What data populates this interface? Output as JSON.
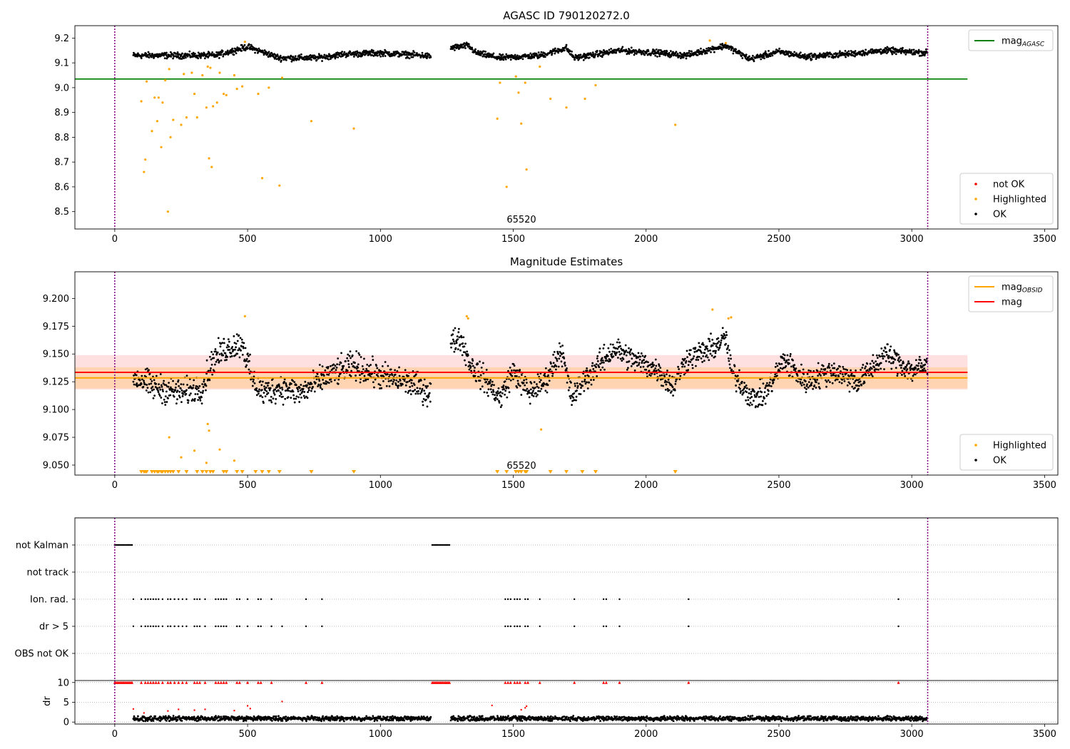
{
  "chart_data": [
    {
      "type": "scatter",
      "title": "AGASC ID 790120272.0",
      "annotation": "65520",
      "xlim": [
        -150,
        3550
      ],
      "ylim": [
        8.43,
        9.25
      ],
      "xticks": [
        0,
        500,
        1000,
        1500,
        2000,
        2500,
        3000,
        3500
      ],
      "yticks": [
        8.5,
        8.6,
        8.7,
        8.8,
        8.9,
        9.0,
        9.1,
        9.2
      ],
      "ytick_decimals": 1,
      "grid": false,
      "colors": {
        "ok": "#000000",
        "highlighted": "#ffa500",
        "not_ok": "#ff0000",
        "mag_agasc": "#008000",
        "vline": "#800080"
      },
      "vlines": [
        0,
        3060
      ],
      "lines": [
        {
          "name": "mag_AGASC",
          "y": 9.035,
          "x": [
            -150,
            3210
          ],
          "color": "#008000"
        }
      ],
      "legends": [
        {
          "placement": "top-right",
          "entries": [
            {
              "label": "mag",
              "sub": "AGASC",
              "kind": "line",
              "color": "#008000"
            }
          ]
        },
        {
          "placement": "bottom-right",
          "entries": [
            {
              "label": "not OK",
              "kind": "dot",
              "color": "#ff0000"
            },
            {
              "label": "Highlighted",
              "kind": "dot",
              "color": "#ffa500"
            },
            {
              "label": "OK",
              "kind": "dot",
              "color": "#000000"
            }
          ]
        }
      ],
      "ok_segments": [
        {
          "x": [
            70,
            380,
            500,
            620,
            760,
            860,
            1000,
            1160,
            1190
          ],
          "y": [
            9.13,
            9.13,
            9.165,
            9.12,
            9.12,
            9.135,
            9.14,
            9.13,
            9.125
          ],
          "spread": 0.012
        },
        {
          "x": [
            1265,
            1330,
            1360,
            1450,
            1600,
            1700,
            1730,
            1900,
            2050,
            2150,
            2300,
            2390,
            2500,
            2600,
            2750,
            2900,
            3060
          ],
          "y": [
            9.16,
            9.17,
            9.14,
            9.12,
            9.13,
            9.16,
            9.12,
            9.15,
            9.14,
            9.13,
            9.17,
            9.115,
            9.145,
            9.125,
            9.135,
            9.15,
            9.14
          ],
          "spread": 0.012
        }
      ],
      "highlighted": {
        "x": [
          100,
          110,
          115,
          120,
          140,
          150,
          160,
          165,
          175,
          180,
          190,
          200,
          205,
          210,
          220,
          250,
          260,
          270,
          290,
          300,
          310,
          330,
          345,
          350,
          355,
          360,
          365,
          370,
          385,
          395,
          410,
          420,
          450,
          460,
          480,
          490,
          540,
          555,
          580,
          620,
          630,
          740,
          900,
          1440,
          1450,
          1475,
          1510,
          1520,
          1530,
          1545,
          1550,
          1600,
          1640,
          1700,
          1770,
          1810,
          2110,
          2240,
          2300
        ],
        "y": [
          8.945,
          8.66,
          8.71,
          9.025,
          8.825,
          8.96,
          8.865,
          8.96,
          8.76,
          8.94,
          9.03,
          8.5,
          9.075,
          8.8,
          8.87,
          8.85,
          9.055,
          8.88,
          9.06,
          8.975,
          8.88,
          9.05,
          8.92,
          9.085,
          8.715,
          9.08,
          8.68,
          8.925,
          8.94,
          9.06,
          8.975,
          8.97,
          9.05,
          8.995,
          9.005,
          9.185,
          8.975,
          8.635,
          9.0,
          8.605,
          9.04,
          8.865,
          8.835,
          8.875,
          9.02,
          8.6,
          9.045,
          8.98,
          8.855,
          9.02,
          8.67,
          9.085,
          8.955,
          8.92,
          8.955,
          9.01,
          8.85,
          9.19,
          9.18
        ]
      }
    },
    {
      "type": "scatter",
      "title": "Magnitude Estimates",
      "annotation": "65520",
      "xlim": [
        -150,
        3550
      ],
      "ylim": [
        9.041,
        9.224
      ],
      "xticks": [
        0,
        500,
        1000,
        1500,
        2000,
        2500,
        3000,
        3500
      ],
      "yticks": [
        9.05,
        9.075,
        9.1,
        9.125,
        9.15,
        9.175,
        9.2
      ],
      "ytick_decimals": 3,
      "grid": false,
      "colors": {
        "ok": "#000000",
        "highlighted": "#ffa500",
        "mag_obsid": "#ffa500",
        "mag": "#ff0000",
        "vline": "#800080"
      },
      "vlines": [
        0,
        3060
      ],
      "bands": [
        {
          "y": [
            9.118,
            9.149
          ],
          "x": [
            -150,
            3210
          ],
          "color": "#ff0000",
          "opacity": 0.12
        },
        {
          "y": [
            9.119,
            9.138
          ],
          "x": [
            -150,
            3210
          ],
          "color": "#ffa500",
          "opacity": 0.2
        }
      ],
      "lines": [
        {
          "name": "mag_OBSID",
          "y": 9.1285,
          "x": [
            -150,
            3210
          ],
          "color": "#ffa500"
        },
        {
          "name": "mag",
          "y": 9.1335,
          "x": [
            -150,
            3210
          ],
          "color": "#ff0000"
        }
      ],
      "legends": [
        {
          "placement": "top-right",
          "entries": [
            {
              "label": "mag",
              "sub": "OBSID",
              "kind": "line",
              "color": "#ffa500"
            },
            {
              "label": "mag",
              "kind": "line",
              "color": "#ff0000"
            }
          ]
        },
        {
          "placement": "bottom-right",
          "entries": [
            {
              "label": "Highlighted",
              "kind": "dot",
              "color": "#ffa500"
            },
            {
              "label": "OK",
              "kind": "dot",
              "color": "#000000"
            }
          ]
        }
      ],
      "ok_segments": [
        {
          "x": [
            70,
            150,
            250,
            330,
            370,
            420,
            480,
            520,
            560,
            620,
            700,
            800,
            900,
            1000,
            1100,
            1190
          ],
          "y": [
            9.13,
            9.12,
            9.115,
            9.12,
            9.145,
            9.155,
            9.16,
            9.125,
            9.115,
            9.12,
            9.115,
            9.13,
            9.14,
            9.13,
            9.125,
            9.115
          ],
          "spread": 0.012
        },
        {
          "x": [
            1265,
            1300,
            1340,
            1400,
            1450,
            1500,
            1560,
            1620,
            1680,
            1720,
            1760,
            1800,
            1880,
            1950,
            2050,
            2100,
            2150,
            2250,
            2300,
            2320,
            2400,
            2450,
            2520,
            2600,
            2700,
            2800,
            2900,
            3000,
            3060
          ],
          "y": [
            9.16,
            9.165,
            9.14,
            9.125,
            9.11,
            9.135,
            9.115,
            9.125,
            9.155,
            9.11,
            9.125,
            9.135,
            9.155,
            9.145,
            9.135,
            9.12,
            9.145,
            9.155,
            9.165,
            9.135,
            9.11,
            9.115,
            9.145,
            9.125,
            9.135,
            9.125,
            9.15,
            9.135,
            9.14
          ],
          "spread": 0.011
        }
      ],
      "highlighted": {
        "x": [
          205,
          250,
          300,
          345,
          350,
          355,
          395,
          450,
          490,
          1325,
          1330,
          1605,
          2250,
          2310,
          2320
        ],
        "y": [
          9.075,
          9.057,
          9.063,
          9.052,
          9.087,
          9.081,
          9.064,
          9.054,
          9.184,
          9.184,
          9.182,
          9.082,
          9.19,
          9.182,
          9.183
        ]
      },
      "clipped_low_x": [
        100,
        110,
        115,
        120,
        140,
        150,
        160,
        165,
        175,
        180,
        190,
        200,
        210,
        220,
        240,
        270,
        310,
        330,
        345,
        360,
        370,
        410,
        420,
        460,
        480,
        530,
        555,
        580,
        620,
        740,
        900,
        1440,
        1475,
        1510,
        1520,
        1530,
        1545,
        1550,
        1640,
        1700,
        1760,
        1810,
        2110
      ]
    },
    {
      "type": "scatter",
      "title": "",
      "xlim": [
        -150,
        3550
      ],
      "grid": "y-dotted",
      "colors": {
        "flag": "#000000",
        "vline": "#800080",
        "gridline": "#aaaaaa"
      },
      "vlines": [
        0,
        3060
      ],
      "categories": [
        "not Kalman",
        "not track",
        "Ion. rad.",
        "dr > 5",
        "OBS not OK"
      ],
      "flags": {
        "not Kalman": [
          0,
          5,
          10,
          15,
          20,
          25,
          30,
          35,
          40,
          45,
          50,
          55,
          60,
          65,
          1195,
          1200,
          1205,
          1210,
          1215,
          1220,
          1225,
          1230,
          1235,
          1240,
          1245,
          1250,
          1255,
          1260
        ],
        "not track": [],
        "Ion. rad.": [
          70,
          100,
          115,
          125,
          135,
          145,
          155,
          165,
          180,
          200,
          210,
          225,
          240,
          255,
          270,
          300,
          310,
          320,
          340,
          380,
          390,
          400,
          410,
          420,
          460,
          470,
          500,
          540,
          550,
          590,
          720,
          780,
          1470,
          1480,
          1490,
          1505,
          1515,
          1525,
          1545,
          1555,
          1600,
          1730,
          1840,
          1850,
          1900,
          2160,
          2950
        ],
        "dr > 5": [
          70,
          100,
          115,
          125,
          135,
          145,
          155,
          165,
          180,
          200,
          210,
          225,
          240,
          255,
          270,
          300,
          310,
          320,
          340,
          380,
          390,
          400,
          410,
          420,
          460,
          470,
          500,
          540,
          550,
          590,
          630,
          720,
          780,
          1470,
          1480,
          1490,
          1505,
          1515,
          1525,
          1545,
          1555,
          1600,
          1730,
          1840,
          1850,
          1900,
          2160,
          2950
        ],
        "OBS not OK": []
      }
    },
    {
      "type": "scatter",
      "ylabel": "dr",
      "xlim": [
        -150,
        3550
      ],
      "ylim": [
        -0.5,
        10.5
      ],
      "xticks": [
        0,
        500,
        1000,
        1500,
        2000,
        2500,
        3000,
        3500
      ],
      "yticks": [
        0,
        5,
        10
      ],
      "ytick_decimals": 0,
      "grid": "y-dotted",
      "colors": {
        "ok": "#000000",
        "highlighted": "#ff0000",
        "capped": "#ff0000",
        "vline": "#800080"
      },
      "vlines": [
        0,
        3060
      ],
      "cap": 10,
      "ok_segments": [
        {
          "x": [
            70,
            1190
          ],
          "y": [
            0.9,
            0.9
          ],
          "spread": 0.5
        },
        {
          "x": [
            1265,
            3060
          ],
          "y": [
            0.9,
            0.9
          ],
          "spread": 0.5
        }
      ],
      "highlighted": {
        "x": [
          70,
          110,
          200,
          240,
          300,
          340,
          450,
          500,
          510,
          630,
          1420,
          1530,
          1545,
          1550
        ],
        "y": [
          3.3,
          2.3,
          2.8,
          3.2,
          3.0,
          3.2,
          2.9,
          4.1,
          3.4,
          5.2,
          4.2,
          3.1,
          3.6,
          4.0
        ]
      },
      "capped_x": [
        0,
        5,
        10,
        15,
        20,
        25,
        30,
        35,
        40,
        45,
        50,
        55,
        60,
        65,
        100,
        115,
        125,
        135,
        145,
        155,
        165,
        180,
        200,
        210,
        225,
        240,
        255,
        270,
        300,
        310,
        320,
        340,
        380,
        390,
        400,
        410,
        420,
        460,
        470,
        500,
        540,
        550,
        590,
        720,
        780,
        1195,
        1200,
        1205,
        1210,
        1215,
        1220,
        1225,
        1230,
        1235,
        1240,
        1245,
        1250,
        1255,
        1260,
        1470,
        1480,
        1490,
        1505,
        1515,
        1525,
        1545,
        1555,
        1600,
        1730,
        1840,
        1850,
        1900,
        2160,
        2950
      ]
    }
  ]
}
